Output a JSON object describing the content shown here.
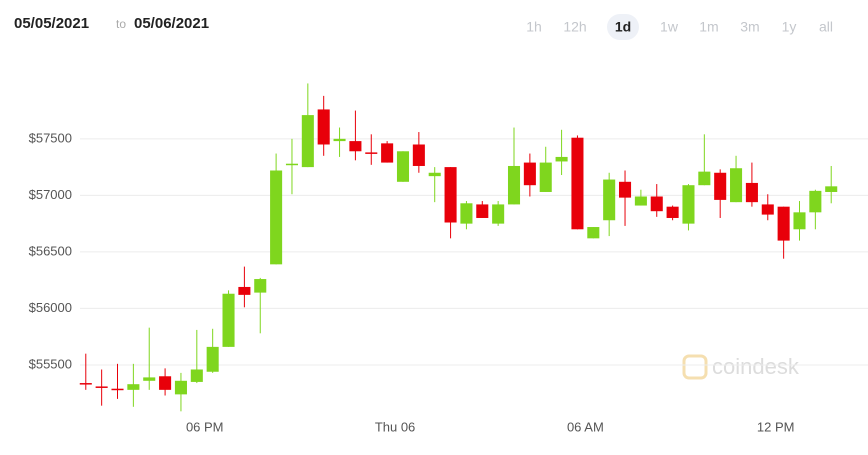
{
  "header": {
    "from": "05/05/2021",
    "separator": "to",
    "to": "05/06/2021"
  },
  "range_buttons": [
    "1h",
    "12h",
    "1d",
    "1w",
    "1m",
    "3m",
    "1y",
    "all"
  ],
  "selected_range": "1d",
  "watermark": "coindesk",
  "chart_data": {
    "type": "candlestick",
    "x": [
      14.25,
      14.75,
      15.25,
      15.75,
      16.25,
      16.75,
      17.25,
      17.75,
      18.25,
      18.75,
      19.25,
      19.75,
      20.25,
      20.75,
      21.25,
      21.75,
      22.25,
      22.75,
      23.25,
      23.75,
      24.25,
      24.75,
      25.25,
      25.75,
      26.25,
      26.75,
      27.25,
      27.75,
      28.25,
      28.75,
      29.25,
      29.75,
      30.25,
      30.75,
      31.25,
      31.75,
      32.25,
      32.75,
      33.25,
      33.75,
      34.25,
      34.75,
      35.25,
      35.75,
      36.25,
      36.75,
      37.25,
      37.75
    ],
    "open": [
      55340,
      55310,
      55290,
      55280,
      55360,
      55400,
      55240,
      55350,
      55440,
      55660,
      56190,
      56140,
      56390,
      57270,
      57250,
      57760,
      57480,
      57480,
      57380,
      57460,
      57120,
      57450,
      57170,
      57250,
      56750,
      56920,
      56750,
      56920,
      57290,
      57030,
      57300,
      57510,
      56620,
      56780,
      57120,
      56910,
      56990,
      56900,
      56750,
      57090,
      57200,
      56940,
      57110,
      56920,
      56900,
      56700,
      56850,
      57030
    ],
    "high": [
      55600,
      55460,
      55510,
      55510,
      55830,
      55470,
      55430,
      55810,
      55820,
      56160,
      56370,
      56270,
      57370,
      57500,
      57990,
      57880,
      57600,
      57750,
      57540,
      57480,
      57390,
      57560,
      57250,
      57250,
      56950,
      56950,
      56950,
      57600,
      57370,
      57430,
      57580,
      57530,
      56720,
      57200,
      57220,
      57050,
      57100,
      56910,
      57100,
      57540,
      57230,
      57350,
      57290,
      57010,
      56900,
      56950,
      57050,
      57260
    ],
    "low": [
      55280,
      55140,
      55200,
      55130,
      55280,
      55230,
      55090,
      55340,
      55430,
      55660,
      56010,
      55780,
      56390,
      57010,
      57250,
      57350,
      57340,
      57310,
      57270,
      57290,
      57120,
      57200,
      56940,
      56620,
      56700,
      56800,
      56730,
      56920,
      56990,
      57030,
      57180,
      56700,
      56620,
      56640,
      56730,
      56910,
      56810,
      56780,
      56690,
      57090,
      56800,
      56940,
      56900,
      56780,
      56440,
      56600,
      56700,
      56930
    ],
    "close": [
      55330,
      55300,
      55280,
      55330,
      55390,
      55280,
      55360,
      55460,
      55660,
      56130,
      56120,
      56260,
      57220,
      57280,
      57710,
      57450,
      57500,
      57390,
      57370,
      57290,
      57390,
      57260,
      57200,
      56760,
      56930,
      56800,
      56920,
      57260,
      57090,
      57290,
      57340,
      56700,
      56720,
      57140,
      56980,
      56990,
      56860,
      56800,
      57090,
      57210,
      56960,
      57240,
      56940,
      56830,
      56600,
      56850,
      57040,
      57080
    ],
    "up_color": "#7fd61e",
    "down_color": "#e8000a",
    "xlim": [
      13.5,
      38.5
    ],
    "xticks": [
      {
        "value": 18,
        "label": "06 PM"
      },
      {
        "value": 24,
        "label": "Thu 06"
      },
      {
        "value": 30,
        "label": "06 AM"
      },
      {
        "value": 36,
        "label": "12 PM"
      }
    ],
    "ylim": [
      55000,
      58100
    ],
    "yticks": [
      {
        "value": 55500,
        "label": "$55500"
      },
      {
        "value": 56000,
        "label": "$56000"
      },
      {
        "value": 56500,
        "label": "$56500"
      },
      {
        "value": 57000,
        "label": "$57000"
      },
      {
        "value": 57500,
        "label": "$57500"
      }
    ],
    "grid": true
  }
}
